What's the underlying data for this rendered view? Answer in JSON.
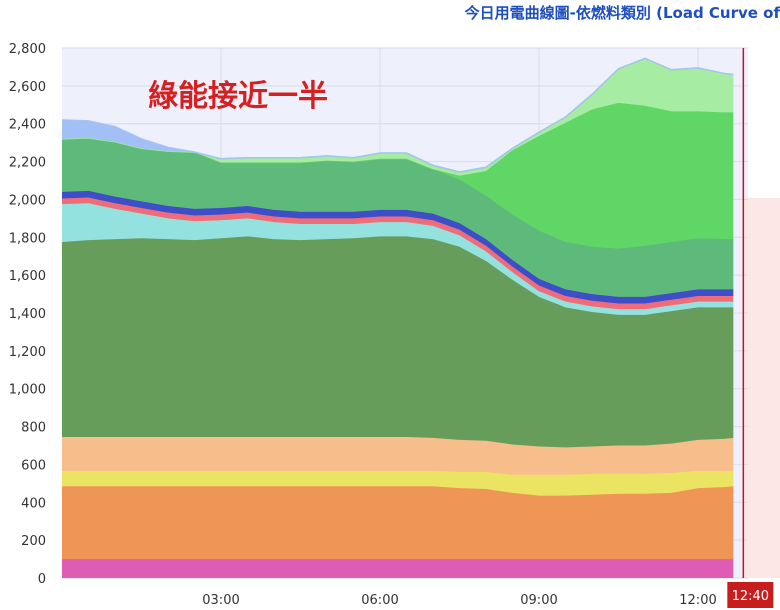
{
  "header": {
    "title": "今日用電曲線圖-依燃料類別 (Load Curve of"
  },
  "chart_data": {
    "type": "area",
    "stacked": true,
    "title": "今日用電曲線圖-依燃料類別 (Load Curve of",
    "annotation": "綠能接近一半",
    "xlabel": "",
    "ylabel": "",
    "ylim": [
      0,
      2800
    ],
    "xlim": [
      "00:00",
      "12:40"
    ],
    "grid": true,
    "y_ticks": [
      "0",
      "200",
      "400",
      "600",
      "800",
      "1,000",
      "1,200",
      "1,400",
      "1,600",
      "1,800",
      "2,000",
      "2,200",
      "2,400",
      "2,600",
      "2,800"
    ],
    "x_ticks": [
      "03:00",
      "06:00",
      "09:00",
      "12:00"
    ],
    "current_time": "12:40",
    "x": [
      "00:00",
      "00:30",
      "01:00",
      "01:30",
      "02:00",
      "02:30",
      "03:00",
      "03:30",
      "04:00",
      "04:30",
      "05:00",
      "05:30",
      "06:00",
      "06:30",
      "07:00",
      "07:30",
      "08:00",
      "08:30",
      "09:00",
      "09:30",
      "10:00",
      "10:30",
      "11:00",
      "11:30",
      "12:00",
      "12:30",
      "12:40"
    ],
    "series": [
      {
        "color": "#de5cb4",
        "values": [
          100,
          100,
          100,
          100,
          100,
          100,
          100,
          100,
          100,
          100,
          100,
          100,
          100,
          100,
          100,
          100,
          100,
          100,
          100,
          100,
          100,
          100,
          100,
          100,
          100,
          100,
          100
        ]
      },
      {
        "color": "#ef9656",
        "values": [
          385,
          385,
          385,
          385,
          385,
          385,
          385,
          385,
          385,
          385,
          385,
          385,
          385,
          385,
          385,
          375,
          370,
          350,
          335,
          335,
          340,
          345,
          345,
          350,
          375,
          380,
          385
        ]
      },
      {
        "color": "#ebe362",
        "values": [
          80,
          80,
          80,
          80,
          80,
          80,
          80,
          80,
          80,
          80,
          80,
          80,
          80,
          80,
          80,
          85,
          90,
          95,
          110,
          110,
          110,
          105,
          105,
          105,
          90,
          85,
          80
        ]
      },
      {
        "color": "#f7be8c",
        "values": [
          180,
          180,
          180,
          180,
          180,
          180,
          180,
          180,
          180,
          180,
          180,
          180,
          180,
          180,
          175,
          170,
          165,
          160,
          150,
          145,
          145,
          150,
          150,
          155,
          165,
          170,
          175
        ]
      },
      {
        "color": "#669d5a",
        "values": [
          1030,
          1040,
          1045,
          1050,
          1045,
          1040,
          1050,
          1060,
          1045,
          1040,
          1045,
          1050,
          1060,
          1060,
          1050,
          1020,
          950,
          870,
          790,
          740,
          710,
          690,
          690,
          700,
          700,
          695,
          690
        ]
      },
      {
        "color": "#94e2df",
        "values": [
          200,
          195,
          160,
          130,
          110,
          100,
          95,
          95,
          90,
          85,
          80,
          75,
          75,
          75,
          70,
          60,
          50,
          40,
          30,
          30,
          30,
          30,
          30,
          30,
          30,
          30,
          30
        ]
      },
      {
        "color": "#ee6d78",
        "values": [
          30,
          30,
          30,
          30,
          30,
          30,
          30,
          30,
          30,
          30,
          30,
          30,
          30,
          30,
          30,
          30,
          30,
          30,
          30,
          30,
          30,
          30,
          30,
          30,
          30,
          30,
          30
        ]
      },
      {
        "color": "#3e4ec9",
        "values": [
          35,
          35,
          35,
          35,
          35,
          35,
          35,
          35,
          35,
          35,
          35,
          35,
          35,
          35,
          35,
          35,
          35,
          35,
          35,
          35,
          35,
          35,
          35,
          35,
          35,
          35,
          35
        ]
      },
      {
        "color": "#5eba7a",
        "values": [
          280,
          280,
          290,
          280,
          290,
          300,
          240,
          230,
          250,
          260,
          270,
          265,
          270,
          270,
          235,
          230,
          230,
          240,
          255,
          250,
          250,
          255,
          270,
          270,
          270,
          265,
          265
        ]
      },
      {
        "color": "#5fd665",
        "values": [
          0,
          0,
          0,
          0,
          0,
          0,
          0,
          0,
          0,
          0,
          0,
          0,
          0,
          0,
          0,
          20,
          130,
          340,
          500,
          630,
          725,
          770,
          740,
          690,
          670,
          670,
          670
        ]
      },
      {
        "color": "#a6eca2",
        "values": [
          0,
          0,
          0,
          0,
          0,
          0,
          20,
          25,
          25,
          25,
          25,
          20,
          30,
          30,
          20,
          20,
          20,
          10,
          20,
          30,
          80,
          180,
          250,
          220,
          230,
          205,
          200
        ]
      },
      {
        "color": "#a2c0f5",
        "values": [
          100,
          90,
          80,
          50,
          20,
          0,
          0,
          0,
          0,
          0,
          0,
          0,
          0,
          0,
          0,
          0,
          0,
          0,
          0,
          0,
          0,
          0,
          0,
          0,
          0,
          0,
          0
        ]
      }
    ]
  }
}
